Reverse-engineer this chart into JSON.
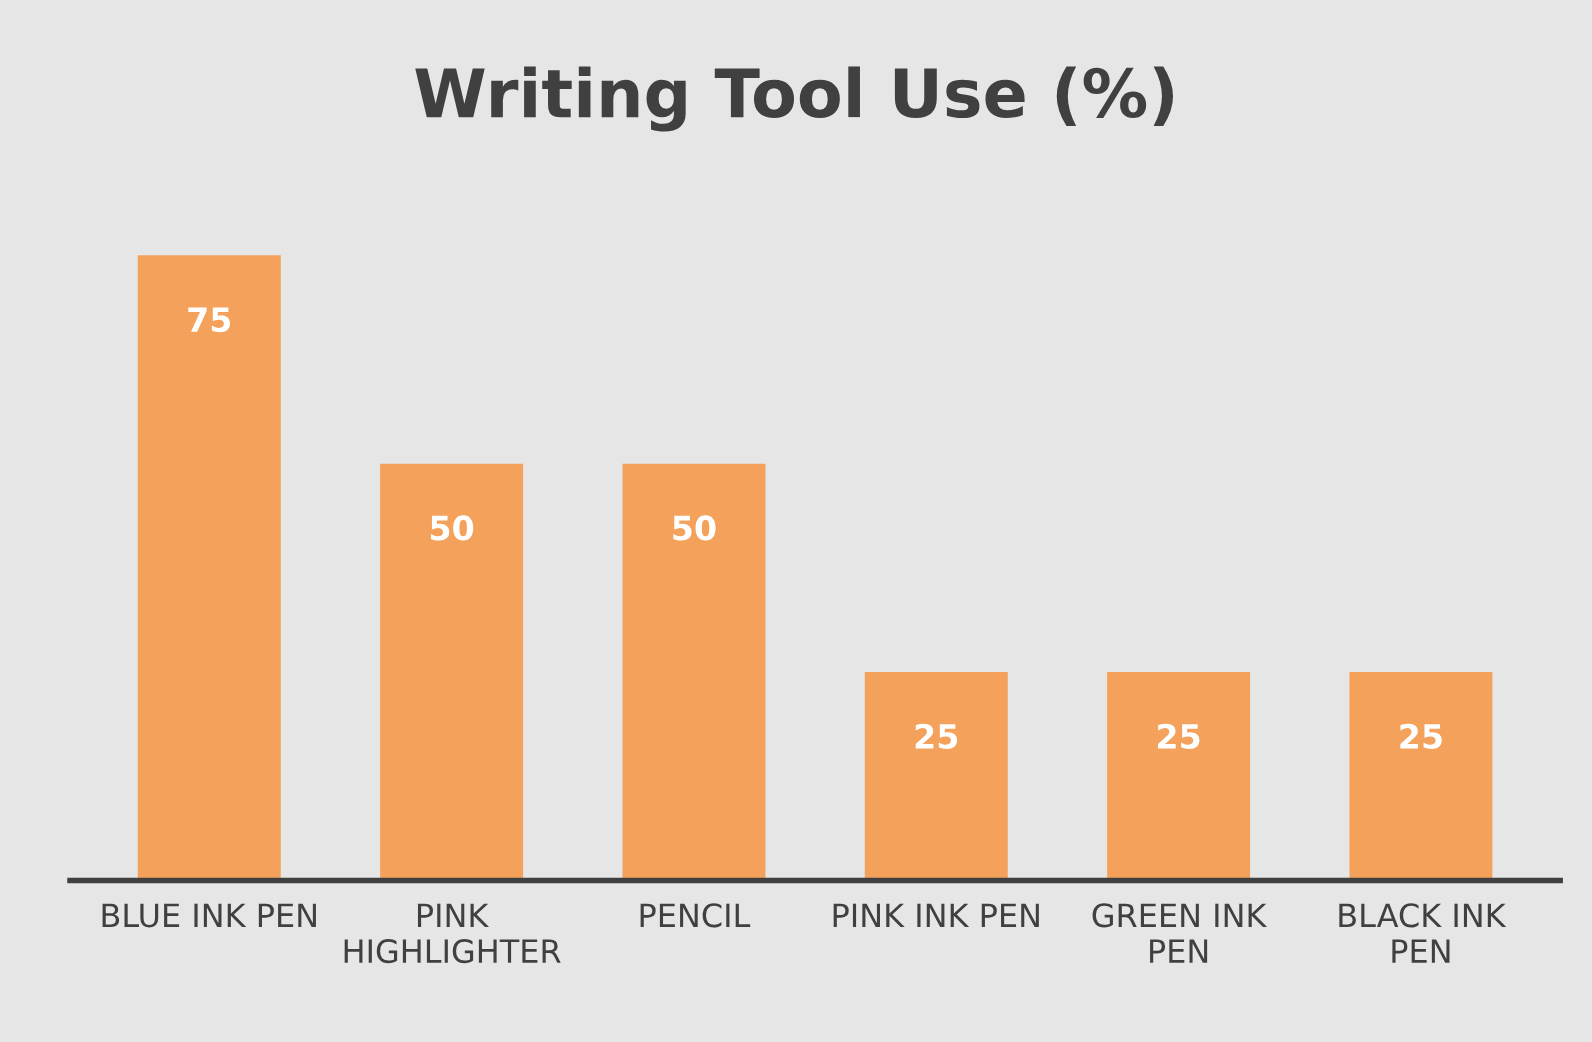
{
  "chart_data": {
    "type": "bar",
    "title": "Writing Tool Use (%)",
    "categories": [
      "BLUE INK PEN",
      "PINK HIGHLIGHTER",
      "PENCIL",
      "PINK INK PEN",
      "GREEN INK PEN",
      "BLACK INK PEN"
    ],
    "values": [
      75,
      50,
      50,
      25,
      25,
      25
    ],
    "color": "#f4a25b",
    "data_labels": true,
    "grid": false,
    "legend": false
  }
}
